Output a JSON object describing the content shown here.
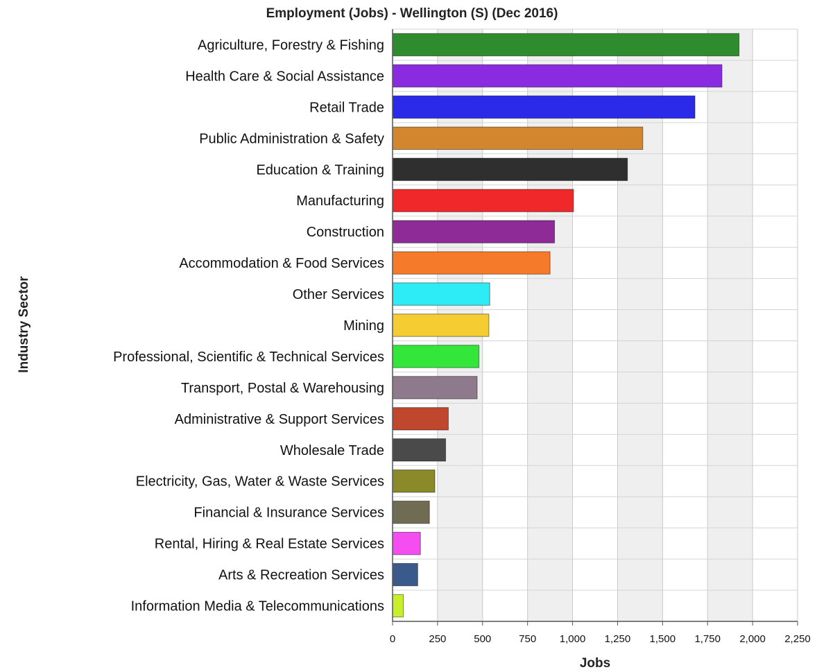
{
  "chart_data": {
    "type": "bar",
    "orientation": "horizontal",
    "title": "Employment (Jobs) - Wellington (S) (Dec 2016)",
    "xlabel": "Jobs",
    "ylabel": "Industry Sector",
    "xlim": [
      0,
      2250
    ],
    "xticks": [
      0,
      250,
      500,
      750,
      1000,
      1250,
      1500,
      1750,
      2000,
      2250
    ],
    "xtick_labels": [
      "0",
      "250",
      "500",
      "750",
      "1,000",
      "1,250",
      "1,500",
      "1,750",
      "2,000",
      "2,250"
    ],
    "grid": true,
    "categories": [
      "Agriculture, Forestry & Fishing",
      "Health Care & Social Assistance",
      "Retail Trade",
      "Public Administration & Safety",
      "Education & Training",
      "Manufacturing",
      "Construction",
      "Accommodation & Food Services",
      "Other Services",
      "Mining",
      "Professional, Scientific & Technical Services",
      "Transport, Postal & Warehousing",
      "Administrative & Support Services",
      "Wholesale Trade",
      "Electricity, Gas, Water & Waste Services",
      "Financial & Insurance Services",
      "Rental, Hiring & Real Estate Services",
      "Arts & Recreation Services",
      "Information Media & Telecommunications"
    ],
    "values": [
      1925,
      1830,
      1680,
      1390,
      1305,
      1005,
      900,
      875,
      540,
      535,
      480,
      470,
      310,
      295,
      235,
      205,
      155,
      140,
      60
    ],
    "colors": [
      "#2e8b2e",
      "#8a2be2",
      "#2a2ae8",
      "#d2862e",
      "#2f2f2f",
      "#f0282a",
      "#8e2b97",
      "#f57a2a",
      "#2eecf5",
      "#f5cc32",
      "#33e63a",
      "#8e7a8c",
      "#c0462e",
      "#4a4a4a",
      "#8a8a2a",
      "#706c54",
      "#f54ef0",
      "#3a5a8c",
      "#c8f02a"
    ]
  }
}
